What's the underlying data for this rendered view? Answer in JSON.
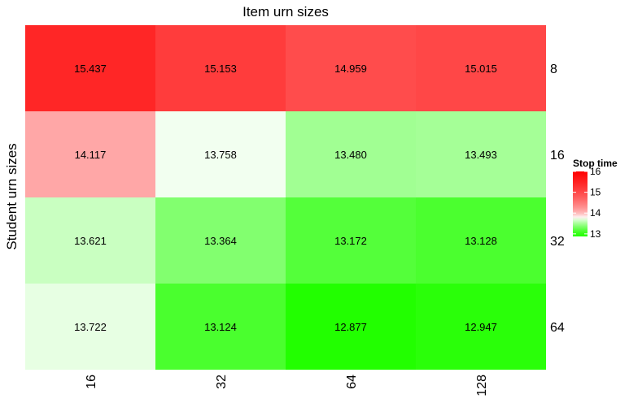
{
  "chart_data": {
    "type": "heatmap",
    "title": "Item urn sizes",
    "xlabel": "",
    "ylabel": "Student urn sizes",
    "x_categories": [
      "16",
      "32",
      "64",
      "128"
    ],
    "y_categories": [
      "8",
      "16",
      "32",
      "64"
    ],
    "values": [
      [
        15.437,
        15.153,
        14.959,
        15.015
      ],
      [
        14.117,
        13.758,
        13.48,
        13.493
      ],
      [
        13.621,
        13.364,
        13.172,
        13.128
      ],
      [
        13.722,
        13.124,
        12.877,
        12.947
      ]
    ],
    "value_labels": [
      [
        "15.437",
        "15.153",
        "14.959",
        "15.015"
      ],
      [
        "14.117",
        "13.758",
        "13.480",
        "13.493"
      ],
      [
        "13.621",
        "13.364",
        "13.172",
        "13.128"
      ],
      [
        "13.722",
        "13.124",
        "12.877",
        "12.947"
      ]
    ],
    "color_scale": {
      "low": "#22ff00",
      "mid": "#ffffff",
      "high": "#ff0000",
      "domain": [
        12.877,
        13.8,
        16.0
      ]
    },
    "legend": {
      "title": "Stop time",
      "ticks": [
        "16",
        "15",
        "14",
        "13"
      ],
      "tick_values": [
        16,
        15,
        14,
        13
      ],
      "range": [
        12.877,
        16.0
      ],
      "placement": "right"
    },
    "grid": false
  }
}
